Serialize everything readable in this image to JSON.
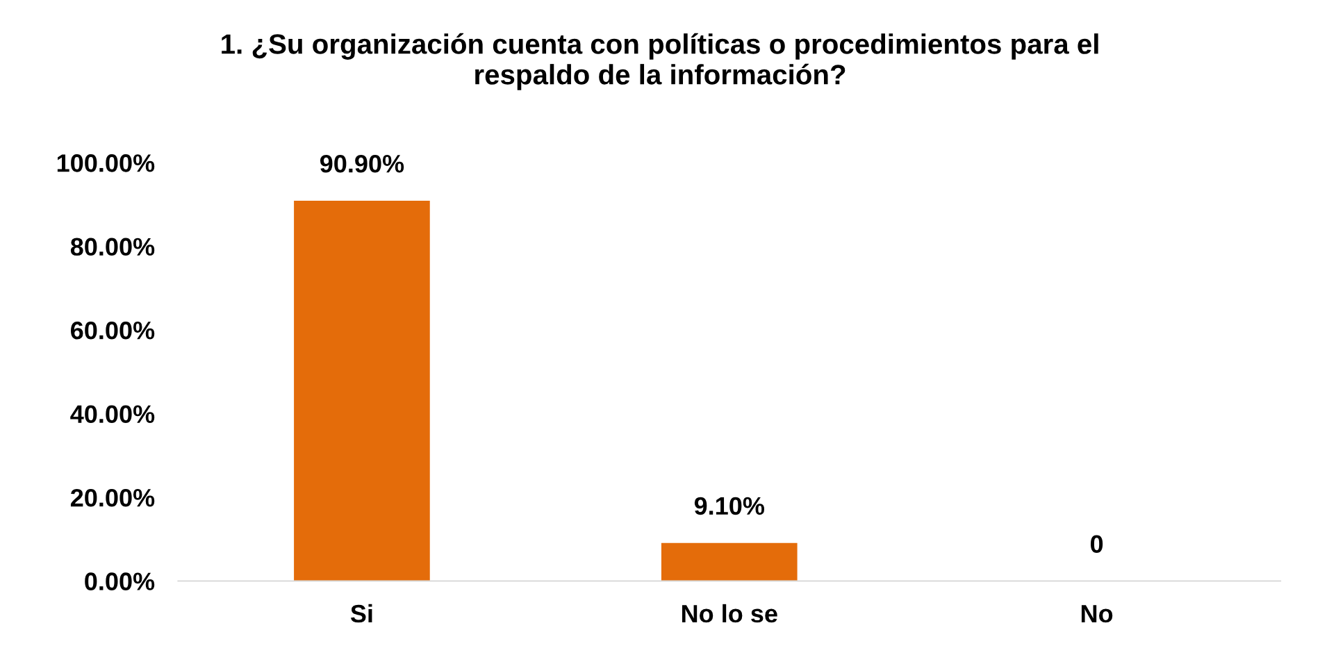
{
  "chart_data": {
    "type": "bar",
    "title": "1. ¿Su organización cuenta con políticas o procedimientos para el\nrespaldo de la información?",
    "categories": [
      "Si",
      "No lo se",
      "No"
    ],
    "values": [
      90.9,
      9.1,
      0
    ],
    "value_labels": [
      "90.90%",
      "9.10%",
      "0"
    ],
    "color": "#e46c0a",
    "ylim": [
      0,
      100
    ],
    "yticks": [
      {
        "value": 0,
        "label": "0.00%"
      },
      {
        "value": 20,
        "label": "20.00%"
      },
      {
        "value": 40,
        "label": "40.00%"
      },
      {
        "value": 60,
        "label": "60.00%"
      },
      {
        "value": 80,
        "label": "80.00%"
      },
      {
        "value": 100,
        "label": "100.00%"
      }
    ],
    "grid": false,
    "legend": false
  }
}
